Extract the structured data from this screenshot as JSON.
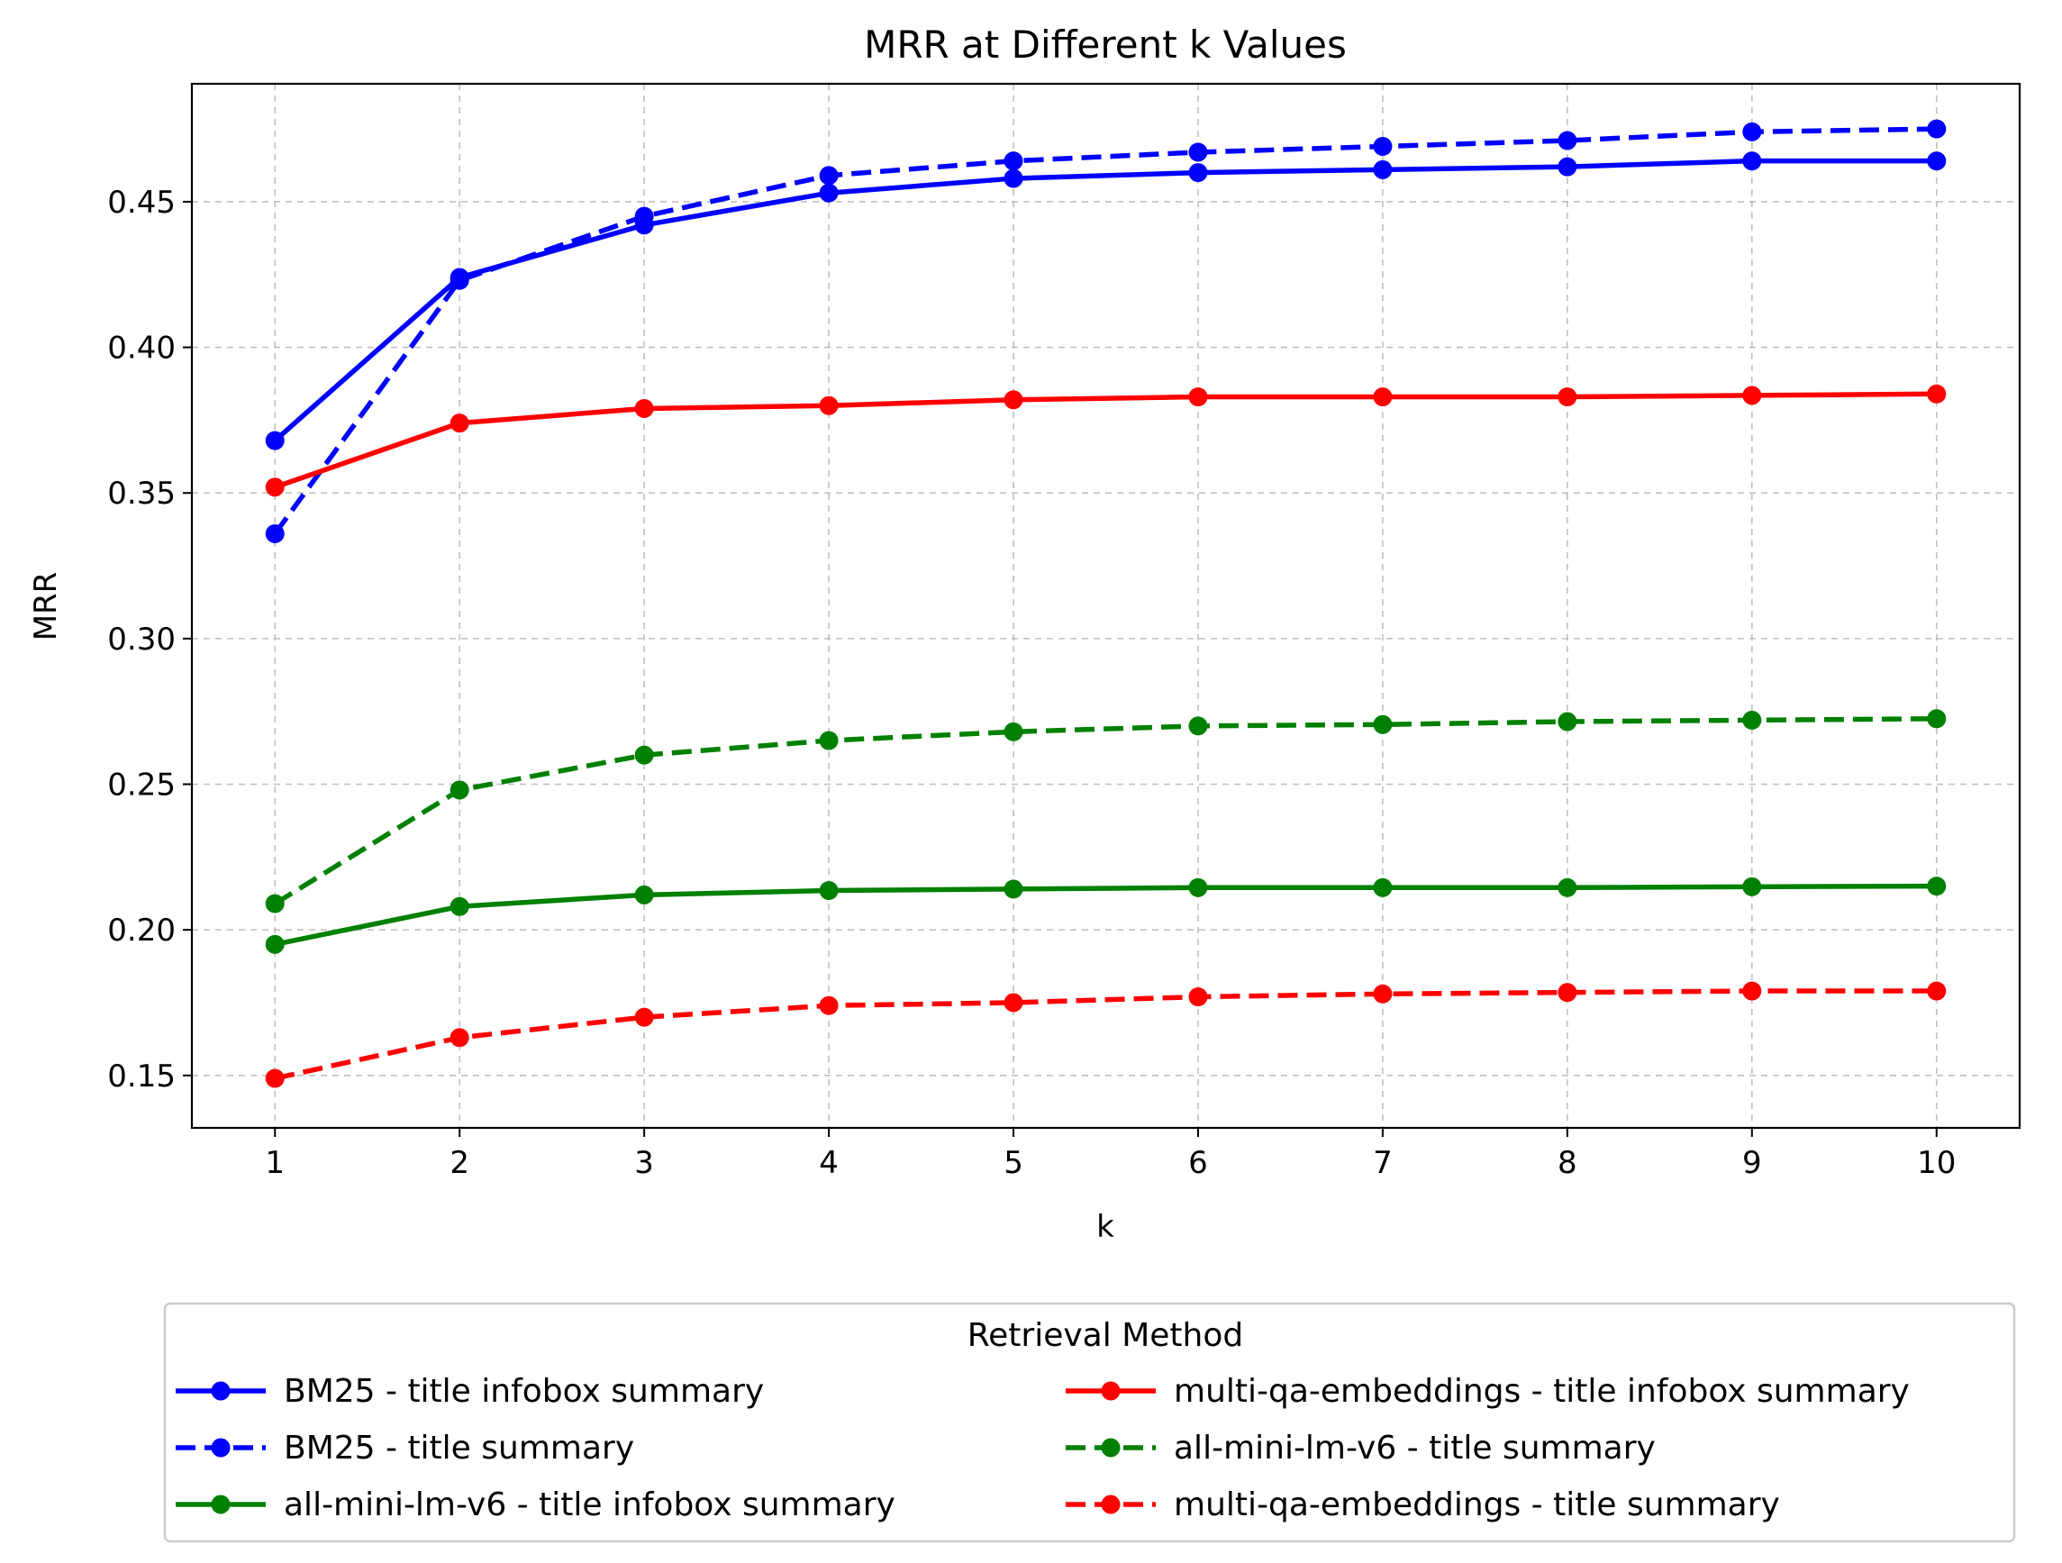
{
  "chart_data": {
    "type": "line",
    "title": "MRR at Different k Values",
    "xlabel": "k",
    "ylabel": "MRR",
    "x": [
      1,
      2,
      3,
      4,
      5,
      6,
      7,
      8,
      9,
      10
    ],
    "xlim": [
      0.55,
      10.45
    ],
    "ylim": [
      0.132,
      0.4905
    ],
    "xticks": [
      1,
      2,
      3,
      4,
      5,
      6,
      7,
      8,
      9,
      10
    ],
    "yticks": [
      "0.15",
      "0.20",
      "0.25",
      "0.30",
      "0.35",
      "0.40",
      "0.45"
    ],
    "grid": true,
    "legend": {
      "title": "Retrieval Method",
      "placement": "lower-center-outside",
      "columns": 2
    },
    "series": [
      {
        "name": "BM25 - title infobox summary",
        "color": "#0000ff",
        "style": "solid",
        "values": [
          0.368,
          0.424,
          0.442,
          0.453,
          0.458,
          0.46,
          0.461,
          0.462,
          0.464,
          0.464
        ]
      },
      {
        "name": "BM25 - title summary",
        "color": "#0000ff",
        "style": "dashed",
        "values": [
          0.336,
          0.423,
          0.445,
          0.459,
          0.464,
          0.467,
          0.469,
          0.471,
          0.474,
          0.475
        ]
      },
      {
        "name": "all-mini-lm-v6 - title infobox summary",
        "color": "#008000",
        "style": "solid",
        "values": [
          0.195,
          0.208,
          0.212,
          0.2135,
          0.214,
          0.2145,
          0.2145,
          0.2145,
          0.2148,
          0.215
        ]
      },
      {
        "name": "multi-qa-embeddings - title infobox summary",
        "color": "#ff0000",
        "style": "solid",
        "values": [
          0.352,
          0.374,
          0.379,
          0.38,
          0.382,
          0.383,
          0.383,
          0.383,
          0.3835,
          0.384
        ]
      },
      {
        "name": "all-mini-lm-v6 - title summary",
        "color": "#008000",
        "style": "dashed",
        "values": [
          0.209,
          0.248,
          0.26,
          0.265,
          0.268,
          0.27,
          0.2705,
          0.2715,
          0.272,
          0.2725
        ]
      },
      {
        "name": "multi-qa-embeddings - title summary",
        "color": "#ff0000",
        "style": "dashed",
        "values": [
          0.149,
          0.163,
          0.17,
          0.174,
          0.175,
          0.177,
          0.178,
          0.1785,
          0.179,
          0.179
        ]
      }
    ]
  }
}
